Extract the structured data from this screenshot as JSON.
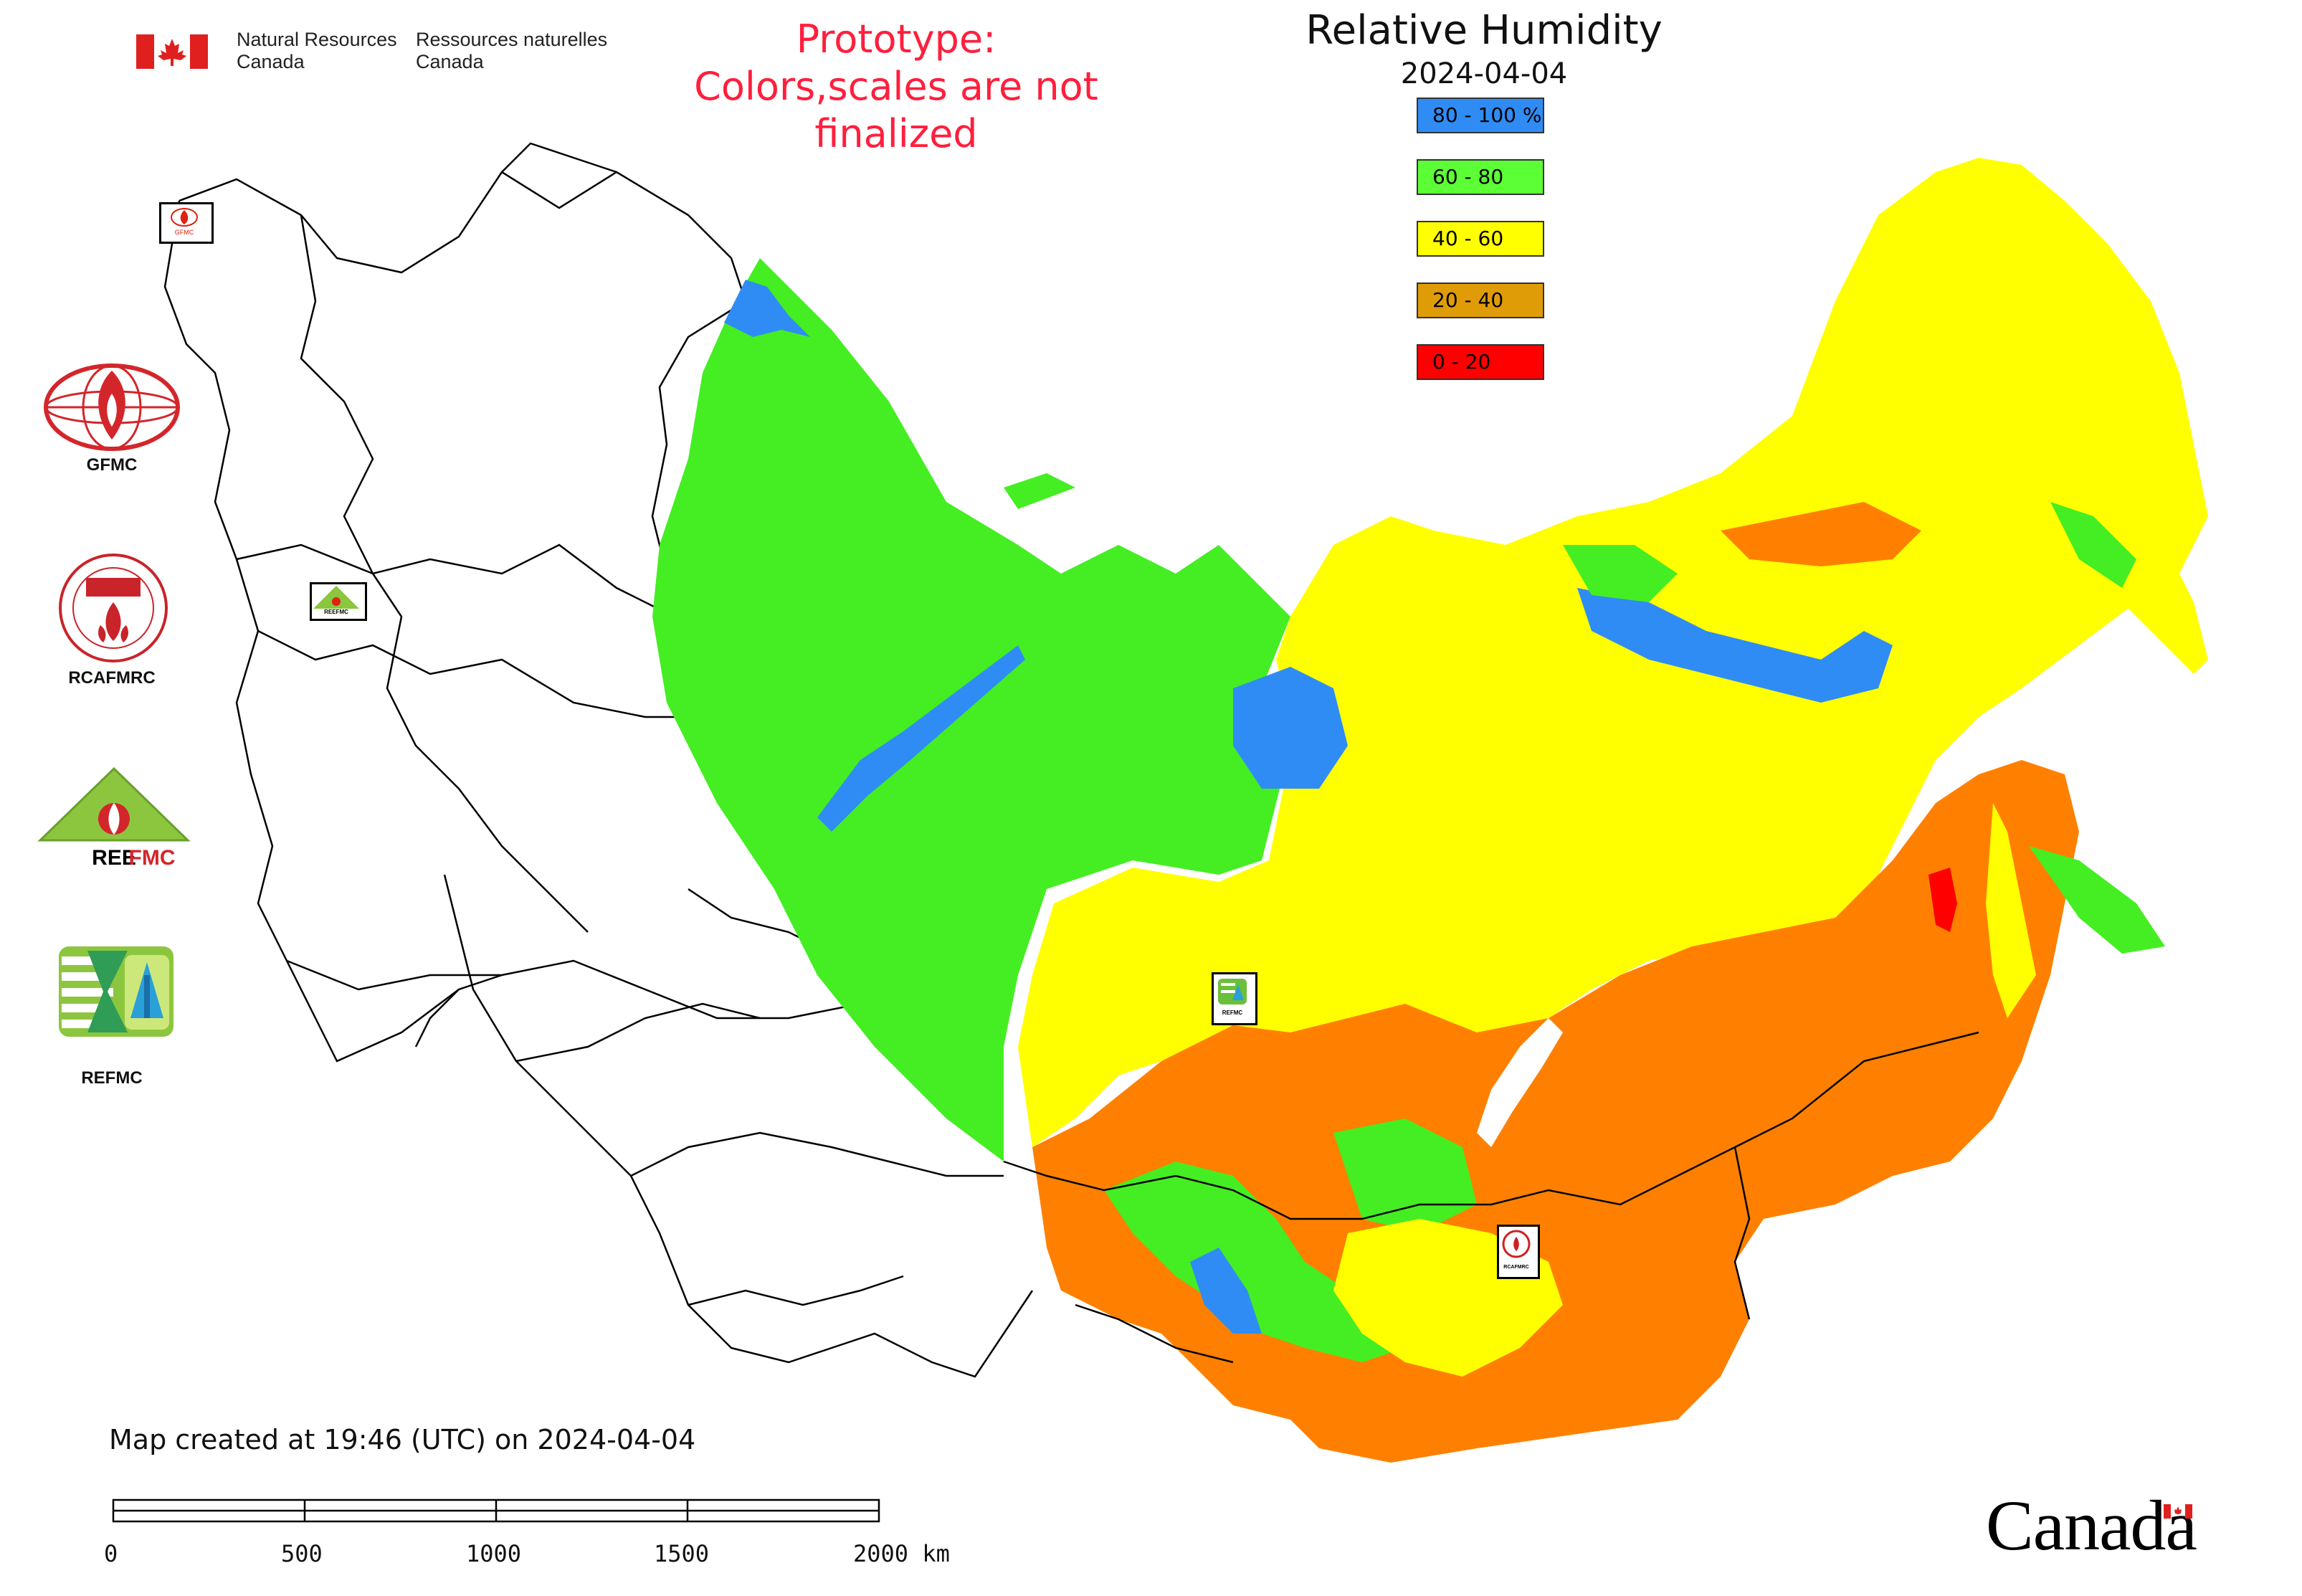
{
  "header": {
    "gov_en_line1": "Natural Resources",
    "gov_en_line2": "Canada",
    "gov_fr_line1": "Ressources naturelles",
    "gov_fr_line2": "Canada",
    "notice_line1": "Prototype:",
    "notice_line2": "Colors,scales are not finalized"
  },
  "map": {
    "title": "Relative Humidity",
    "date": "2024-04-04",
    "legend": [
      {
        "label": "80 - 100 %",
        "color": "#2f8cf5"
      },
      {
        "label": "60 - 80",
        "color": "#5cff35"
      },
      {
        "label": "40 - 60",
        "color": "#ffff00"
      },
      {
        "label": "20 - 40",
        "color": "#df9c07"
      },
      {
        "label": "0 - 20",
        "color": "#ff0000"
      }
    ],
    "colors": {
      "high": "#2f8cf5",
      "moist": "#44ee22",
      "mid": "#ffff00",
      "dry": "#ff8000",
      "very_dry": "#ff0000",
      "border": "#000000"
    },
    "markers": [
      "GFMC",
      "REEFMC",
      "REFMC",
      "RCAFMRC"
    ]
  },
  "logos": [
    {
      "name": "GFMC",
      "icon": "gfmc-globe-flame-icon"
    },
    {
      "name": "RCAFMRC",
      "icon": "rcafmrc-seal-icon"
    },
    {
      "name": "REEFMC",
      "icon": "reefmc-triangle-icon"
    },
    {
      "name": "REFMC",
      "icon": "refmc-sigma-icon"
    }
  ],
  "footer": {
    "created": "Map created at 19:46 (UTC) on 2024-04-04",
    "scale_ticks": [
      "0",
      "500",
      "1000",
      "1500",
      "2000 km"
    ],
    "wordmark": "Canada"
  }
}
